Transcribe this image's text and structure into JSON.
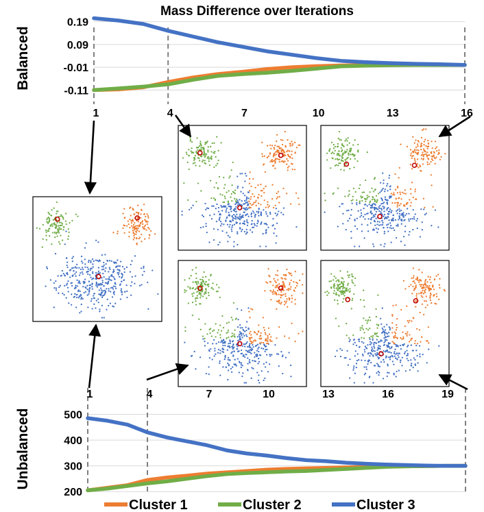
{
  "colors": {
    "cluster1": "#ED7D31",
    "cluster2": "#70AD47",
    "cluster3": "#4472C4",
    "center": "#C00000"
  },
  "chart_data": [
    {
      "type": "line",
      "title": "Mass Difference over Iterations",
      "ylabel": "Balanced",
      "x": [
        1,
        2,
        3,
        4,
        5,
        6,
        7,
        8,
        9,
        10,
        11,
        12,
        13,
        14,
        15,
        16
      ],
      "xticks": [
        1,
        4,
        7,
        10,
        13,
        16
      ],
      "yticks": [
        0.19,
        0.09,
        -0.01,
        -0.11
      ],
      "ytick_labels": [
        "0.19",
        "0.09",
        "-0.01",
        "-0.11"
      ],
      "ylim": [
        -0.13,
        0.21
      ],
      "series": [
        {
          "name": "Cluster 1",
          "values": [
            -0.11,
            -0.107,
            -0.098,
            -0.075,
            -0.055,
            -0.04,
            -0.03,
            -0.018,
            -0.01,
            -0.005,
            -0.002,
            -0.001,
            0,
            0,
            0,
            0
          ]
        },
        {
          "name": "Cluster 2",
          "values": [
            -0.11,
            -0.103,
            -0.095,
            -0.085,
            -0.065,
            -0.048,
            -0.04,
            -0.034,
            -0.026,
            -0.016,
            -0.006,
            -0.003,
            -0.001,
            0,
            0,
            0
          ]
        },
        {
          "name": "Cluster 3",
          "values": [
            0.205,
            0.195,
            0.18,
            0.15,
            0.125,
            0.1,
            0.08,
            0.06,
            0.045,
            0.03,
            0.018,
            0.012,
            0.008,
            0.005,
            0.003,
            0
          ]
        }
      ]
    },
    {
      "type": "line",
      "ylabel": "Unbalanced",
      "x": [
        1,
        2,
        3,
        4,
        5,
        6,
        7,
        8,
        9,
        10,
        11,
        12,
        13,
        14,
        15,
        16,
        17,
        18,
        19,
        20
      ],
      "xticks": [
        1,
        4,
        7,
        10,
        13,
        16,
        19
      ],
      "yticks": [
        500,
        400,
        300,
        200
      ],
      "ytick_labels": [
        "500",
        "400",
        "300",
        "200"
      ],
      "ylim": [
        190,
        520
      ],
      "series": [
        {
          "name": "Cluster 1",
          "values": [
            205,
            215,
            225,
            245,
            255,
            262,
            270,
            275,
            280,
            285,
            288,
            290,
            292,
            294,
            296,
            297,
            298,
            299,
            300,
            300
          ]
        },
        {
          "name": "Cluster 2",
          "values": [
            205,
            212,
            222,
            232,
            240,
            250,
            260,
            268,
            272,
            275,
            278,
            280,
            284,
            288,
            292,
            296,
            298,
            299,
            300,
            300
          ]
        },
        {
          "name": "Cluster 3",
          "values": [
            485,
            475,
            460,
            430,
            410,
            395,
            380,
            360,
            348,
            340,
            330,
            322,
            318,
            312,
            308,
            305,
            303,
            301,
            300,
            300
          ]
        }
      ]
    }
  ],
  "legend": [
    "Cluster 1",
    "Cluster 2",
    "Cluster 3"
  ],
  "snapshots": [
    {
      "name": "iteration-1-initial"
    },
    {
      "name": "balanced-iteration-4"
    },
    {
      "name": "balanced-iteration-16"
    },
    {
      "name": "unbalanced-iteration-4"
    },
    {
      "name": "unbalanced-iteration-20"
    }
  ]
}
